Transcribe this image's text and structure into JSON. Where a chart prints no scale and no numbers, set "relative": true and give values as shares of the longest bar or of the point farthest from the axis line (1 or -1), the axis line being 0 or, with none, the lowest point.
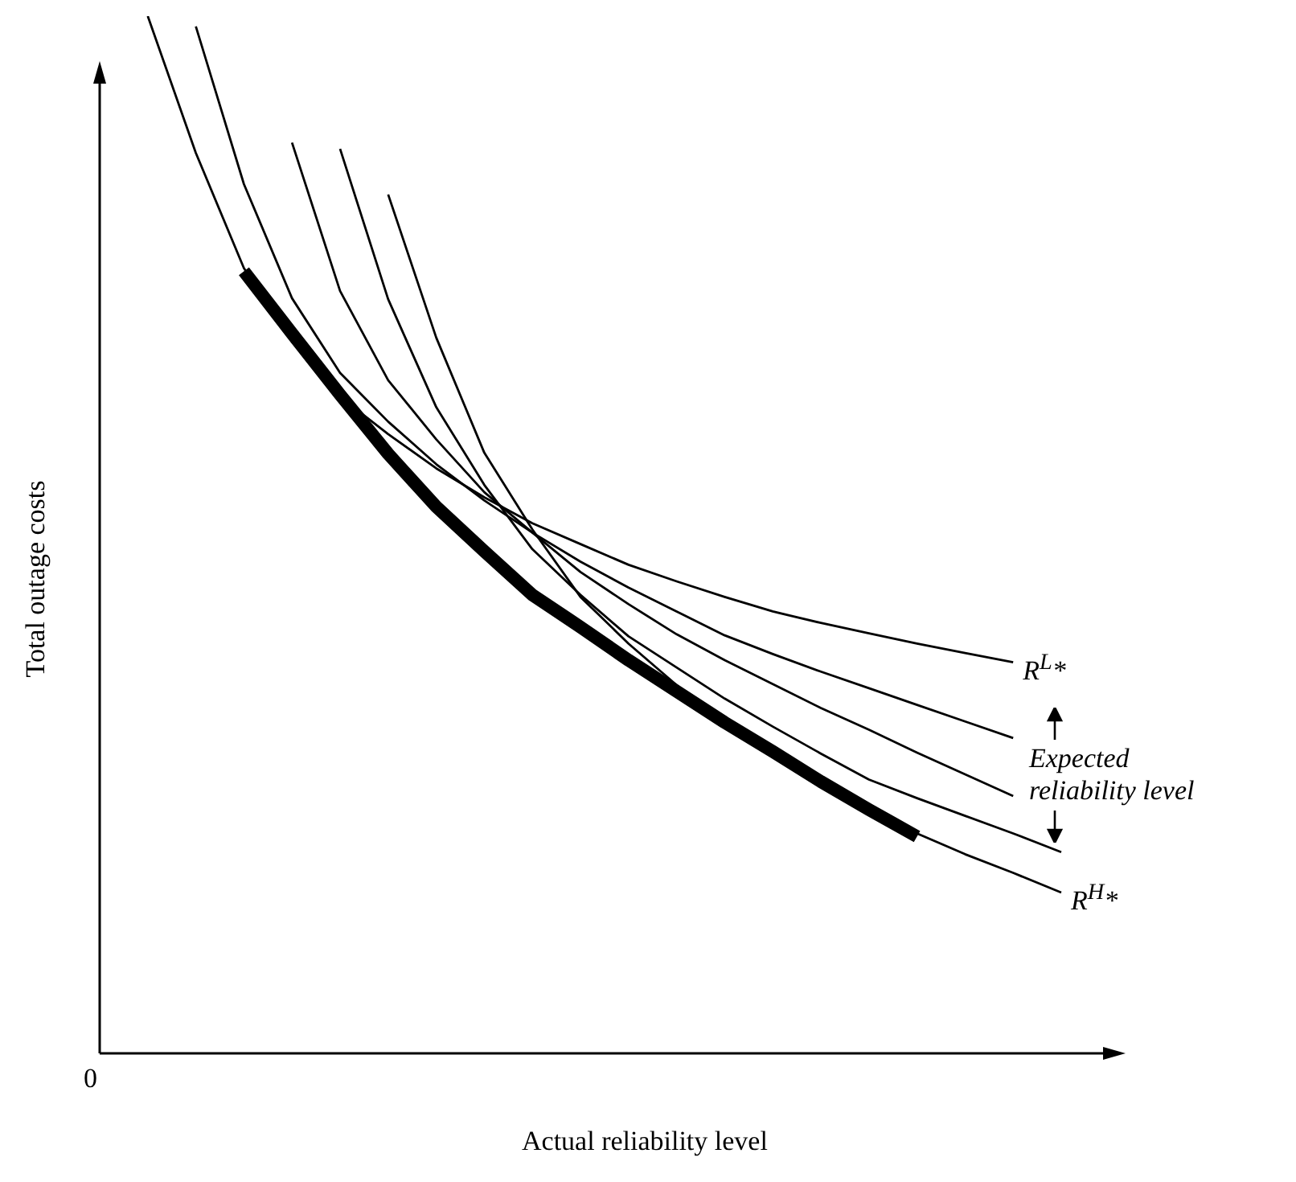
{
  "chart_data": {
    "type": "line",
    "relative": true,
    "xlabel": "Actual reliability level",
    "ylabel": "Total outage costs",
    "categories": [
      null,
      null,
      null,
      null,
      null,
      null,
      null,
      null,
      null,
      null,
      null,
      null,
      null,
      null,
      null,
      null,
      null,
      null,
      null,
      null,
      null
    ],
    "series": [
      {
        "name": "R$^{L}$*",
        "color": "#000000",
        "values": [
          null,
          1.0,
          0.868,
          0.757,
          0.686,
          0.633,
          0.597,
          0.564,
          0.536,
          0.511,
          0.491,
          0.471,
          0.455,
          0.44,
          0.426,
          0.415,
          0.405,
          0.395,
          0.386,
          0.377,
          null
        ]
      },
      {
        "color": "#000000",
        "values": [
          null,
          null,
          0.99,
          0.838,
          0.728,
          0.656,
          0.609,
          0.568,
          0.533,
          0.502,
          0.474,
          0.449,
          0.426,
          0.403,
          0.385,
          0.368,
          0.352,
          0.336,
          0.32,
          0.304,
          null
        ]
      },
      {
        "color": "#000000",
        "values": [
          null,
          null,
          null,
          null,
          0.878,
          0.735,
          0.649,
          0.592,
          0.541,
          0.502,
          0.464,
          0.433,
          0.404,
          0.379,
          0.356,
          0.333,
          0.312,
          0.29,
          0.269,
          0.248,
          null
        ]
      },
      {
        "color": "#000000",
        "values": [
          null,
          null,
          null,
          null,
          null,
          0.872,
          0.727,
          0.623,
          0.548,
          0.486,
          0.442,
          0.402,
          0.372,
          0.342,
          0.315,
          0.289,
          0.264,
          0.246,
          0.229,
          0.212,
          0.194
        ]
      },
      {
        "name": "R$^{H}$*",
        "color": "#000000",
        "values": [
          null,
          null,
          null,
          null,
          null,
          null,
          0.828,
          0.69,
          0.579,
          0.505,
          0.44,
          0.395,
          0.355,
          0.318,
          0.286,
          0.259,
          0.233,
          0.212,
          0.192,
          0.174,
          0.155
        ]
      },
      {
        "color": "#000000",
        "values": [
          null,
          null,
          null,
          0.754,
          0.694,
          0.635,
          0.578,
          0.527,
          0.484,
          0.442,
          0.411,
          0.379,
          0.349,
          0.319,
          0.291,
          0.262,
          0.235,
          0.209,
          null,
          null,
          null
        ]
      }
    ],
    "annotations": [
      "Expected reliability level",
      "0"
    ]
  }
}
